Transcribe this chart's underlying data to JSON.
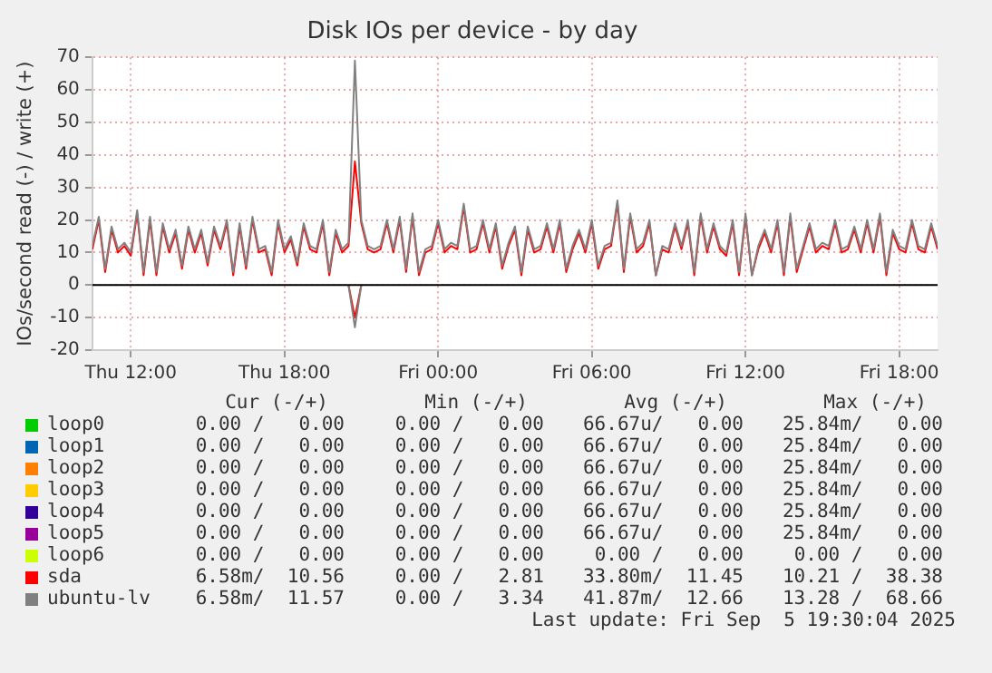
{
  "chart_data": {
    "type": "line",
    "title": "Disk IOs per device - by day",
    "ylabel": "IOs/second read (-) / write (+)",
    "x": [
      "2025-09-04T10:30",
      "2025-09-04T10:45",
      "2025-09-04T11:00",
      "2025-09-04T11:15",
      "2025-09-04T11:30",
      "2025-09-04T11:45",
      "2025-09-04T12:00",
      "2025-09-04T12:15",
      "2025-09-04T12:30",
      "2025-09-04T12:45",
      "2025-09-04T13:00",
      "2025-09-04T13:15",
      "2025-09-04T13:30",
      "2025-09-04T13:45",
      "2025-09-04T14:00",
      "2025-09-04T14:15",
      "2025-09-04T14:30",
      "2025-09-04T14:45",
      "2025-09-04T15:00",
      "2025-09-04T15:15",
      "2025-09-04T15:30",
      "2025-09-04T15:45",
      "2025-09-04T16:00",
      "2025-09-04T16:15",
      "2025-09-04T16:30",
      "2025-09-04T16:45",
      "2025-09-04T17:00",
      "2025-09-04T17:15",
      "2025-09-04T17:30",
      "2025-09-04T17:45",
      "2025-09-04T18:00",
      "2025-09-04T18:15",
      "2025-09-04T18:30",
      "2025-09-04T18:45",
      "2025-09-04T19:00",
      "2025-09-04T19:15",
      "2025-09-04T19:30",
      "2025-09-04T19:45",
      "2025-09-04T20:00",
      "2025-09-04T20:15",
      "2025-09-04T20:30",
      "2025-09-04T20:45",
      "2025-09-04T21:00",
      "2025-09-04T21:15",
      "2025-09-04T21:30",
      "2025-09-04T21:45",
      "2025-09-04T22:00",
      "2025-09-04T22:15",
      "2025-09-04T22:30",
      "2025-09-04T22:45",
      "2025-09-04T23:00",
      "2025-09-04T23:15",
      "2025-09-04T23:30",
      "2025-09-04T23:45",
      "2025-09-05T00:00",
      "2025-09-05T00:15",
      "2025-09-05T00:30",
      "2025-09-05T00:45",
      "2025-09-05T01:00",
      "2025-09-05T01:15",
      "2025-09-05T01:30",
      "2025-09-05T01:45",
      "2025-09-05T02:00",
      "2025-09-05T02:15",
      "2025-09-05T02:30",
      "2025-09-05T02:45",
      "2025-09-05T03:00",
      "2025-09-05T03:15",
      "2025-09-05T03:30",
      "2025-09-05T03:45",
      "2025-09-05T04:00",
      "2025-09-05T04:15",
      "2025-09-05T04:30",
      "2025-09-05T04:45",
      "2025-09-05T05:00",
      "2025-09-05T05:15",
      "2025-09-05T05:30",
      "2025-09-05T05:45",
      "2025-09-05T06:00",
      "2025-09-05T06:15",
      "2025-09-05T06:30",
      "2025-09-05T06:45",
      "2025-09-05T07:00",
      "2025-09-05T07:15",
      "2025-09-05T07:30",
      "2025-09-05T07:45",
      "2025-09-05T08:00",
      "2025-09-05T08:15",
      "2025-09-05T08:30",
      "2025-09-05T08:45",
      "2025-09-05T09:00",
      "2025-09-05T09:15",
      "2025-09-05T09:30",
      "2025-09-05T09:45",
      "2025-09-05T10:00",
      "2025-09-05T10:15",
      "2025-09-05T10:30",
      "2025-09-05T10:45",
      "2025-09-05T11:00",
      "2025-09-05T11:15",
      "2025-09-05T11:30",
      "2025-09-05T11:45",
      "2025-09-05T12:00",
      "2025-09-05T12:15",
      "2025-09-05T12:30",
      "2025-09-05T12:45",
      "2025-09-05T13:00",
      "2025-09-05T13:15",
      "2025-09-05T13:30",
      "2025-09-05T13:45",
      "2025-09-05T14:00",
      "2025-09-05T14:15",
      "2025-09-05T14:30",
      "2025-09-05T14:45",
      "2025-09-05T15:00",
      "2025-09-05T15:15",
      "2025-09-05T15:30",
      "2025-09-05T15:45",
      "2025-09-05T16:00",
      "2025-09-05T16:15",
      "2025-09-05T16:30",
      "2025-09-05T16:45",
      "2025-09-05T17:00",
      "2025-09-05T17:15",
      "2025-09-05T17:30",
      "2025-09-05T17:45",
      "2025-09-05T18:00",
      "2025-09-05T18:15",
      "2025-09-05T18:30",
      "2025-09-05T18:45",
      "2025-09-05T19:00",
      "2025-09-05T19:15",
      "2025-09-05T19:30"
    ],
    "xlim": [
      "2025-09-04T10:30",
      "2025-09-05T19:30"
    ],
    "xticks": [
      {
        "value": "2025-09-04T12:00",
        "label": "Thu 12:00"
      },
      {
        "value": "2025-09-04T18:00",
        "label": "Thu 18:00"
      },
      {
        "value": "2025-09-05T00:00",
        "label": "Fri 00:00"
      },
      {
        "value": "2025-09-05T06:00",
        "label": "Fri 06:00"
      },
      {
        "value": "2025-09-05T12:00",
        "label": "Fri 12:00"
      },
      {
        "value": "2025-09-05T18:00",
        "label": "Fri 18:00"
      }
    ],
    "ylim": [
      -20,
      70
    ],
    "yticks": [
      -20,
      -10,
      0,
      10,
      20,
      30,
      40,
      50,
      60,
      70
    ],
    "grid": true,
    "legend": "bottom",
    "ref_lines": [
      {
        "axis": "y",
        "value": 0,
        "color": "#000000"
      }
    ],
    "series": [
      {
        "name": "loop0",
        "color": "#00cc00",
        "values": [
          null,
          null,
          null,
          null,
          null,
          null,
          null,
          null,
          null,
          null,
          null,
          null,
          null,
          null,
          null,
          null,
          null,
          null,
          null,
          null,
          null,
          null,
          null,
          null,
          null,
          null,
          null,
          null,
          null,
          null,
          null,
          null,
          null,
          null,
          null,
          null,
          null,
          null,
          null,
          null,
          null,
          null,
          null,
          null,
          null,
          null,
          null,
          null,
          null,
          null,
          null,
          null,
          null,
          null,
          null,
          null,
          null,
          null,
          null,
          null,
          null,
          null,
          null,
          null,
          null,
          null,
          null,
          null,
          null,
          null,
          null,
          null,
          null,
          null,
          null,
          null,
          null,
          null,
          null,
          null,
          null,
          null,
          null,
          null,
          null,
          null,
          null,
          null,
          null,
          null,
          null,
          null,
          null,
          null,
          null,
          null,
          null,
          null,
          null,
          null,
          null,
          null,
          null,
          null,
          null,
          null,
          null,
          null,
          null,
          null,
          null,
          null,
          null,
          null,
          null,
          null,
          null,
          null,
          null,
          null,
          null,
          null,
          null,
          null,
          null,
          null,
          null,
          null,
          null,
          null,
          null,
          null,
          null
        ]
      },
      {
        "name": "loop1",
        "color": "#0066b3",
        "values": [
          null,
          null,
          null,
          null,
          null,
          null,
          null,
          null,
          null,
          null,
          null,
          null,
          null,
          null,
          null,
          null,
          null,
          null,
          null,
          null,
          null,
          null,
          null,
          null,
          null,
          null,
          null,
          null,
          null,
          null,
          null,
          null,
          null,
          null,
          null,
          null,
          null,
          null,
          null,
          null,
          null,
          null,
          null,
          null,
          null,
          null,
          null,
          null,
          null,
          null,
          null,
          null,
          null,
          null,
          null,
          null,
          null,
          null,
          null,
          null,
          null,
          null,
          null,
          null,
          null,
          null,
          null,
          null,
          null,
          null,
          null,
          null,
          null,
          null,
          null,
          null,
          null,
          null,
          null,
          null,
          null,
          null,
          null,
          null,
          null,
          null,
          null,
          null,
          null,
          null,
          null,
          null,
          null,
          null,
          null,
          null,
          null,
          null,
          null,
          null,
          null,
          null,
          null,
          null,
          null,
          null,
          null,
          null,
          null,
          null,
          null,
          null,
          null,
          null,
          null,
          null,
          null,
          null,
          null,
          null,
          null,
          null,
          null,
          null,
          null,
          null,
          null,
          null,
          null,
          null,
          null,
          null,
          null
        ]
      },
      {
        "name": "loop2",
        "color": "#ff8000",
        "values": [
          null,
          null,
          null,
          null,
          null,
          null,
          null,
          null,
          null,
          null,
          null,
          null,
          null,
          null,
          null,
          null,
          null,
          null,
          null,
          null,
          null,
          null,
          null,
          null,
          null,
          null,
          null,
          null,
          null,
          null,
          null,
          null,
          null,
          null,
          null,
          null,
          null,
          null,
          null,
          null,
          null,
          null,
          null,
          null,
          null,
          null,
          null,
          null,
          null,
          null,
          null,
          null,
          null,
          null,
          null,
          null,
          null,
          null,
          null,
          null,
          null,
          null,
          null,
          null,
          null,
          null,
          null,
          null,
          null,
          null,
          null,
          null,
          null,
          null,
          null,
          null,
          null,
          null,
          null,
          null,
          null,
          null,
          null,
          null,
          null,
          null,
          null,
          null,
          null,
          null,
          null,
          null,
          null,
          null,
          null,
          null,
          null,
          null,
          null,
          null,
          null,
          null,
          null,
          null,
          null,
          null,
          null,
          null,
          null,
          null,
          null,
          null,
          null,
          null,
          null,
          null,
          null,
          null,
          null,
          null,
          null,
          null,
          null,
          null,
          null,
          null,
          null,
          null,
          null,
          null,
          null,
          null,
          null
        ]
      },
      {
        "name": "loop3",
        "color": "#ffcc00",
        "values": [
          null,
          null,
          null,
          null,
          null,
          null,
          null,
          null,
          null,
          null,
          null,
          null,
          null,
          null,
          null,
          null,
          null,
          null,
          null,
          null,
          null,
          null,
          null,
          null,
          null,
          null,
          null,
          null,
          null,
          null,
          null,
          null,
          null,
          null,
          null,
          null,
          null,
          null,
          null,
          null,
          null,
          null,
          null,
          null,
          null,
          null,
          null,
          null,
          null,
          null,
          null,
          null,
          null,
          null,
          null,
          null,
          null,
          null,
          null,
          null,
          null,
          null,
          null,
          null,
          null,
          null,
          null,
          null,
          null,
          null,
          null,
          null,
          null,
          null,
          null,
          null,
          null,
          null,
          null,
          null,
          null,
          null,
          null,
          null,
          null,
          null,
          null,
          null,
          null,
          null,
          null,
          null,
          null,
          null,
          null,
          null,
          null,
          null,
          null,
          null,
          null,
          null,
          null,
          null,
          null,
          null,
          null,
          null,
          null,
          null,
          null,
          null,
          null,
          null,
          null,
          null,
          null,
          null,
          null,
          null,
          null,
          null,
          null,
          null,
          null,
          null,
          null,
          null,
          null,
          null,
          null,
          null,
          null
        ]
      },
      {
        "name": "loop4",
        "color": "#330099",
        "values": [
          null,
          null,
          null,
          null,
          null,
          null,
          null,
          null,
          null,
          null,
          null,
          null,
          null,
          null,
          null,
          null,
          null,
          null,
          null,
          null,
          null,
          null,
          null,
          null,
          null,
          null,
          null,
          null,
          null,
          null,
          null,
          null,
          null,
          null,
          null,
          null,
          null,
          null,
          null,
          null,
          null,
          null,
          null,
          null,
          null,
          null,
          null,
          null,
          null,
          null,
          null,
          null,
          null,
          null,
          null,
          null,
          null,
          null,
          null,
          null,
          null,
          null,
          null,
          null,
          null,
          null,
          null,
          null,
          null,
          null,
          null,
          null,
          null,
          null,
          null,
          null,
          null,
          null,
          null,
          null,
          null,
          null,
          null,
          null,
          null,
          null,
          null,
          null,
          null,
          null,
          null,
          null,
          null,
          null,
          null,
          null,
          null,
          null,
          null,
          null,
          null,
          null,
          null,
          null,
          null,
          null,
          null,
          null,
          null,
          null,
          null,
          null,
          null,
          null,
          null,
          null,
          null,
          null,
          null,
          null,
          null,
          null,
          null,
          null,
          null,
          null,
          null,
          null,
          null,
          null,
          null,
          null,
          null
        ]
      },
      {
        "name": "loop5",
        "color": "#990099",
        "values": [
          null,
          null,
          null,
          null,
          null,
          null,
          null,
          null,
          null,
          null,
          null,
          null,
          null,
          null,
          null,
          null,
          null,
          null,
          null,
          null,
          null,
          null,
          null,
          null,
          null,
          null,
          null,
          null,
          null,
          null,
          null,
          null,
          null,
          null,
          null,
          null,
          null,
          null,
          null,
          null,
          null,
          null,
          null,
          null,
          null,
          null,
          null,
          null,
          null,
          null,
          null,
          null,
          null,
          null,
          null,
          null,
          null,
          null,
          null,
          null,
          null,
          null,
          null,
          null,
          null,
          null,
          null,
          null,
          null,
          null,
          null,
          null,
          null,
          null,
          null,
          null,
          null,
          null,
          null,
          null,
          null,
          null,
          null,
          null,
          null,
          null,
          null,
          null,
          null,
          null,
          null,
          null,
          null,
          null,
          null,
          null,
          null,
          null,
          null,
          null,
          null,
          null,
          null,
          null,
          null,
          null,
          null,
          null,
          null,
          null,
          null,
          null,
          null,
          null,
          null,
          null,
          null,
          null,
          null,
          null,
          null,
          null,
          null,
          null,
          null,
          null,
          null,
          null,
          null,
          null,
          null,
          null,
          null
        ]
      },
      {
        "name": "loop6",
        "color": "#ccff00",
        "values": [
          null,
          null,
          null,
          null,
          null,
          null,
          null,
          null,
          null,
          null,
          null,
          null,
          null,
          null,
          null,
          null,
          null,
          null,
          null,
          null,
          null,
          null,
          null,
          null,
          null,
          null,
          null,
          null,
          null,
          null,
          null,
          null,
          null,
          null,
          null,
          null,
          null,
          null,
          null,
          null,
          null,
          null,
          null,
          null,
          null,
          null,
          null,
          null,
          null,
          null,
          null,
          null,
          null,
          null,
          null,
          null,
          null,
          null,
          null,
          null,
          null,
          null,
          null,
          null,
          null,
          null,
          null,
          null,
          null,
          null,
          null,
          null,
          null,
          null,
          null,
          null,
          null,
          null,
          null,
          null,
          null,
          null,
          null,
          null,
          null,
          null,
          null,
          null,
          null,
          null,
          null,
          null,
          null,
          null,
          null,
          null,
          null,
          null,
          null,
          null,
          null,
          null,
          null,
          null,
          null,
          null,
          null,
          null,
          null,
          null,
          null,
          null,
          null,
          null,
          null,
          null,
          null,
          null,
          null,
          null,
          null,
          null,
          null,
          null,
          null,
          null,
          null,
          null,
          null,
          null,
          null,
          null,
          null
        ]
      },
      {
        "name": "sda",
        "color": "#ff0000",
        "values": [
          11,
          20,
          4,
          17,
          10,
          12,
          9,
          22,
          3,
          20,
          3,
          18,
          10,
          16,
          5,
          17,
          10,
          16,
          6,
          17,
          11,
          19,
          3,
          18,
          5,
          20,
          10,
          11,
          3,
          19,
          10,
          14,
          6,
          18,
          11,
          10,
          19,
          3,
          16,
          10,
          12,
          38,
          19,
          11,
          10,
          11,
          19,
          10,
          20,
          4,
          21,
          3,
          10,
          11,
          19,
          10,
          12,
          11,
          24,
          10,
          11,
          19,
          10,
          18,
          5,
          12,
          17,
          3,
          17,
          10,
          11,
          18,
          10,
          19,
          4,
          11,
          16,
          10,
          19,
          5,
          11,
          12,
          25,
          4,
          21,
          10,
          12,
          19,
          3,
          11,
          10,
          18,
          11,
          19,
          3,
          21,
          10,
          18,
          11,
          9,
          19,
          3,
          21,
          3,
          11,
          16,
          10,
          19,
          3,
          21,
          4,
          11,
          18,
          10,
          12,
          11,
          19,
          10,
          11,
          17,
          10,
          19,
          10,
          21,
          3,
          16,
          11,
          10,
          19,
          11,
          10,
          18,
          11
        ]
      },
      {
        "name": "ubuntu-lv",
        "color": "#808080",
        "values": [
          12,
          21,
          5,
          18,
          11,
          13,
          10,
          23,
          4,
          21,
          4,
          19,
          11,
          17,
          6,
          18,
          11,
          17,
          7,
          18,
          12,
          20,
          4,
          19,
          6,
          21,
          11,
          12,
          4,
          20,
          11,
          15,
          7,
          19,
          12,
          11,
          20,
          4,
          17,
          11,
          13,
          69,
          20,
          12,
          11,
          12,
          20,
          11,
          21,
          5,
          22,
          4,
          11,
          12,
          20,
          11,
          13,
          12,
          25,
          11,
          12,
          20,
          11,
          19,
          6,
          13,
          18,
          4,
          18,
          11,
          12,
          19,
          11,
          20,
          5,
          12,
          17,
          11,
          20,
          6,
          12,
          13,
          26,
          5,
          22,
          11,
          13,
          20,
          3,
          12,
          11,
          19,
          12,
          20,
          4,
          22,
          11,
          19,
          12,
          10,
          20,
          4,
          22,
          3,
          12,
          17,
          11,
          20,
          4,
          22,
          5,
          12,
          19,
          11,
          13,
          12,
          20,
          11,
          12,
          18,
          11,
          20,
          11,
          22,
          4,
          17,
          12,
          11,
          20,
          12,
          11,
          19,
          12
        ]
      },
      {
        "color": "#ff0000",
        "x": [
          "2025-09-04T20:30",
          "2025-09-04T20:45",
          "2025-09-04T21:00"
        ],
        "values": [
          0,
          -10,
          0
        ]
      },
      {
        "color": "#808080",
        "x": [
          "2025-09-04T20:30",
          "2025-09-04T20:45",
          "2025-09-04T21:00"
        ],
        "values": [
          0,
          -13,
          0
        ]
      }
    ],
    "annotations": [
      "Cur (-/+)",
      "Min (-/+)",
      "Avg (-/+)",
      "Max (-/+)",
      "0.00 /   0.00",
      "0.00 /   0.00",
      "66.67u/   0.00",
      "25.84m/   0.00",
      "0.00 /   0.00",
      "0.00 /   0.00",
      "66.67u/   0.00",
      "25.84m/   0.00",
      "0.00 /   0.00",
      "0.00 /   0.00",
      "66.67u/   0.00",
      "25.84m/   0.00",
      "0.00 /   0.00",
      "0.00 /   0.00",
      "66.67u/   0.00",
      "25.84m/   0.00",
      "0.00 /   0.00",
      "0.00 /   0.00",
      "66.67u/   0.00",
      "25.84m/   0.00",
      "0.00 /   0.00",
      "0.00 /   0.00",
      "66.67u/   0.00",
      "25.84m/   0.00",
      "0.00 /   0.00",
      "0.00 /   0.00",
      "0.00 /   0.00",
      "0.00 /   0.00",
      "6.58m/  10.56",
      "0.00 /   2.81",
      "33.80m/  11.45",
      "10.21 /  38.38",
      "6.58m/  11.57",
      "0.00 /   3.34",
      "41.87m/  12.66",
      "13.28 /  68.66",
      "Last update: Fri Sep  5 19:30:04 2025"
    ]
  }
}
